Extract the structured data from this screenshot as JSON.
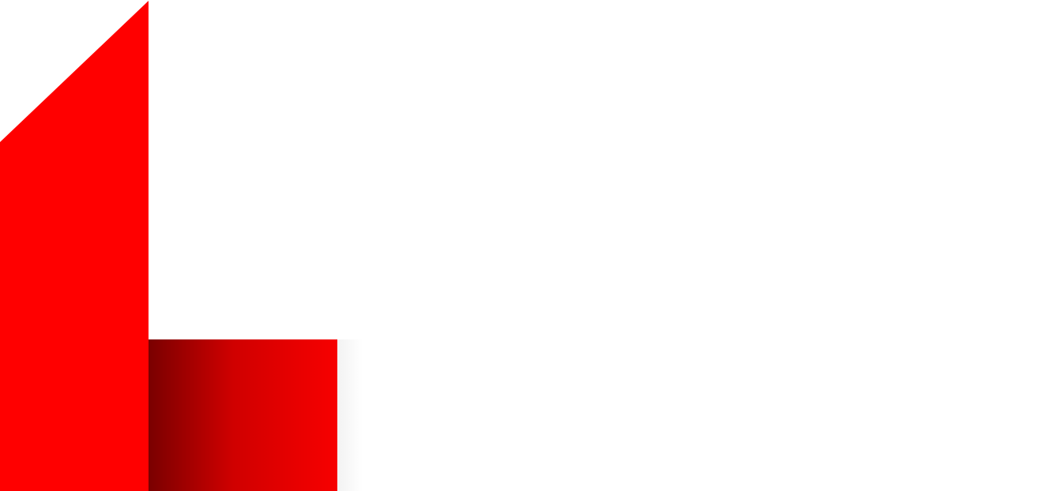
{
  "logo": {
    "name": "red-folded-l-logo",
    "colors": {
      "primary": "#ff0000",
      "shade_dark": "#7a0000",
      "shade_mid": "#d00000",
      "shade_light": "#f70000",
      "background": "#ffffff"
    }
  }
}
